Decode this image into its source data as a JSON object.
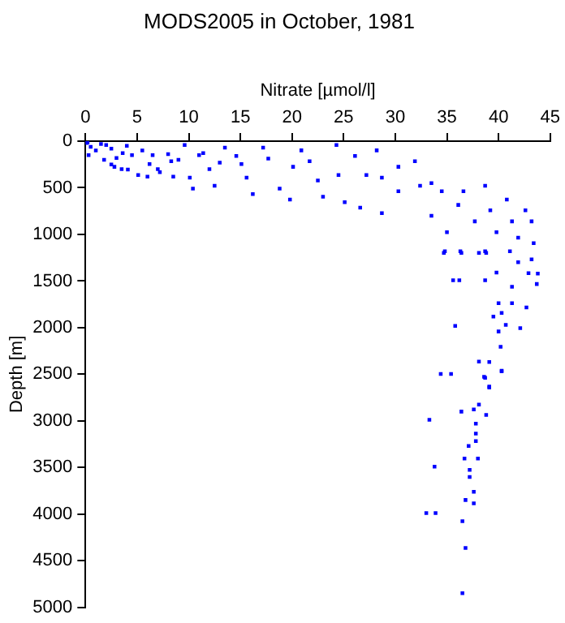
{
  "chart_data": {
    "type": "scatter",
    "title": "MODS2005 in October, 1981",
    "xlabel": "Nitrate [µmol/l]",
    "ylabel": "Depth [m]",
    "xlim": [
      0,
      45
    ],
    "xticks": [
      0,
      5,
      10,
      15,
      20,
      25,
      30,
      35,
      40,
      45
    ],
    "ylim": [
      5000,
      0
    ],
    "yticks": [
      0,
      500,
      1000,
      1500,
      2000,
      2500,
      3000,
      3500,
      4000,
      4500,
      5000
    ],
    "grid": false,
    "marker": "square",
    "series": [
      {
        "color": "#0000ff",
        "x": [
          0.1,
          0.5,
          1,
          0.3,
          1.5,
          2.5,
          3,
          4,
          4.5,
          1.8,
          2.5,
          3.5,
          5.5,
          6.5,
          7,
          8,
          9,
          8.5,
          6,
          11,
          12,
          13,
          0.2,
          2.0,
          3.6,
          2.8,
          4.1,
          5.1,
          6.2,
          7.2,
          8.3,
          9.6,
          10.1,
          10.4,
          11.4,
          12.5,
          13.5,
          14.6,
          15.1,
          15.6,
          16.2,
          17.2,
          17.7,
          18.8,
          19.8,
          20.1,
          20.9,
          21.7,
          22.5,
          23.0,
          24.3,
          24.5,
          25.1,
          26.1,
          27.2,
          26.6,
          28.2,
          28.7,
          28.7,
          30.3,
          30.3,
          31.9,
          32.4,
          33.5,
          33.5,
          34.5,
          35.0,
          36.1,
          36.6,
          37.7,
          38.7,
          39.2,
          39.8,
          40.8,
          41.3,
          41.9,
          42.6,
          43.2,
          43.4,
          41.1,
          41.9,
          43.2,
          38.7,
          36.3,
          34.8,
          34.7,
          36.4,
          38.1,
          38.8,
          35.6,
          36.2,
          38.7,
          39.8,
          43.7,
          42.9,
          43.8,
          41.3,
          40.0,
          41.3,
          42.7,
          40.3,
          39.5,
          35.8,
          40.7,
          42.1,
          40.0,
          40.2,
          38.1,
          39.1,
          40.3,
          38.6,
          39.1,
          34.4,
          35.4,
          38.7,
          40.3,
          39.1,
          38.1,
          37.6,
          36.4,
          38.8,
          33.3,
          37.8,
          37.8,
          37.8,
          37.1,
          36.7,
          38.0,
          33.8,
          37.2,
          37.2,
          37.6,
          36.8,
          37.6,
          33.0,
          33.9,
          36.5,
          36.8,
          36.5
        ],
        "values": [
          20,
          60,
          100,
          150,
          30,
          80,
          180,
          50,
          150,
          200,
          250,
          300,
          100,
          150,
          300,
          140,
          200,
          380,
          380,
          150,
          300,
          230,
          12,
          41,
          128,
          275,
          304,
          363,
          246,
          333,
          216,
          41,
          392,
          509,
          128,
          479,
          70,
          158,
          246,
          392,
          567,
          70,
          187,
          509,
          626,
          275,
          99,
          216,
          421,
          596,
          41,
          363,
          655,
          158,
          363,
          713,
          99,
          392,
          772,
          275,
          538,
          216,
          479,
          450,
          801,
          538,
          977,
          684,
          538,
          860,
          479,
          742,
          977,
          626,
          860,
          1035,
          742,
          860,
          1093,
          1181,
          1298,
          1268,
          1181,
          1181,
          1181,
          1199,
          1199,
          1199,
          1199,
          1491,
          1491,
          1491,
          1409,
          1532,
          1415,
          1420,
          1561,
          1737,
          1737,
          1784,
          1842,
          1882,
          1982,
          1971,
          2006,
          2041,
          2205,
          2363,
          2368,
          2468,
          2526,
          2632,
          2497,
          2497,
          2538,
          2462,
          2643,
          2825,
          2877,
          2900,
          2936,
          2988,
          3030,
          3135,
          3216,
          3269,
          3404,
          3404,
          3491,
          3526,
          3602,
          3760,
          3848,
          3883,
          3988,
          3988,
          4076,
          4363,
          4847
        ]
      }
    ]
  }
}
